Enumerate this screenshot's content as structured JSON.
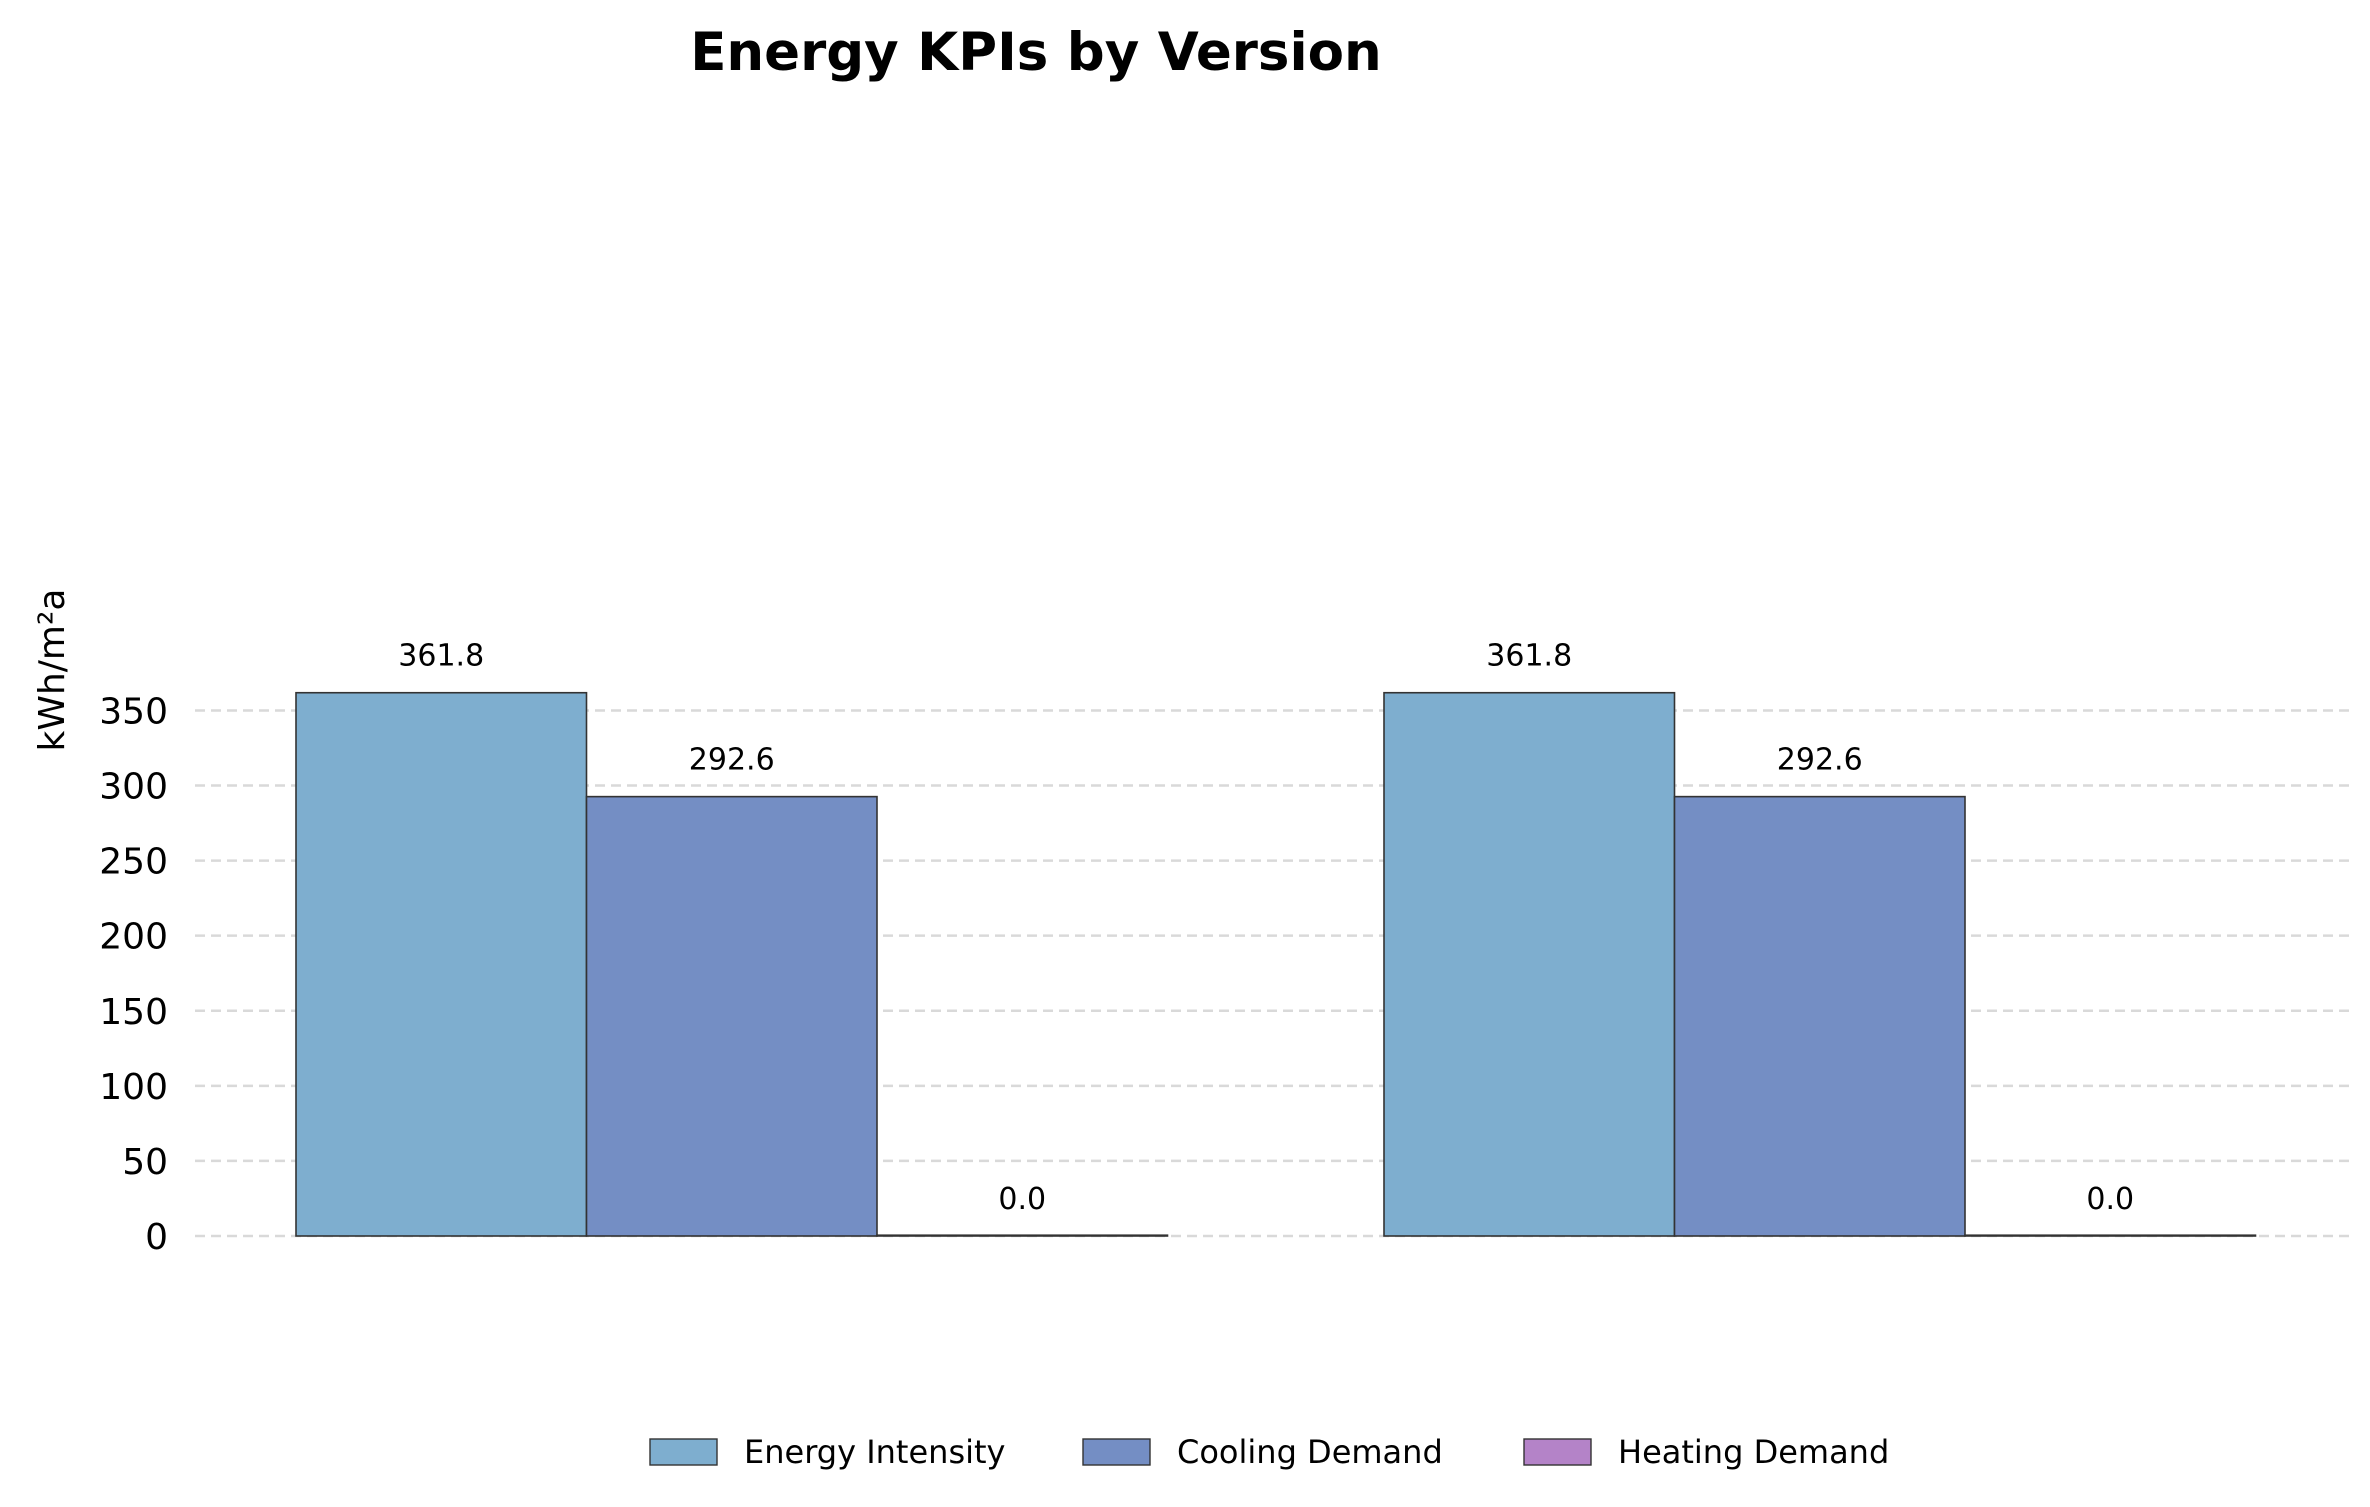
{
  "chart_data": {
    "type": "bar",
    "title": "Energy KPIs by Version",
    "xlabel": "",
    "ylabel": "kWh/m²a",
    "categories": [
      "",
      ""
    ],
    "series": [
      {
        "name": "Energy Intensity",
        "values": [
          361.8,
          361.8
        ],
        "labels": [
          "361.8",
          "361.8"
        ],
        "color": "#7eaecf"
      },
      {
        "name": "Cooling Demand",
        "values": [
          292.6,
          292.6
        ],
        "labels": [
          "292.6",
          "292.6"
        ],
        "color": "#748ec4"
      },
      {
        "name": "Heating Demand",
        "values": [
          0.0,
          0.0
        ],
        "labels": [
          "0.0",
          "0.0"
        ],
        "color": "#b483c8"
      }
    ],
    "ylim": [
      0,
      375
    ],
    "yticks": [
      0,
      50,
      100,
      150,
      200,
      250,
      300,
      350
    ],
    "grid": "horizontal dashed",
    "legend": "bottom-center"
  }
}
